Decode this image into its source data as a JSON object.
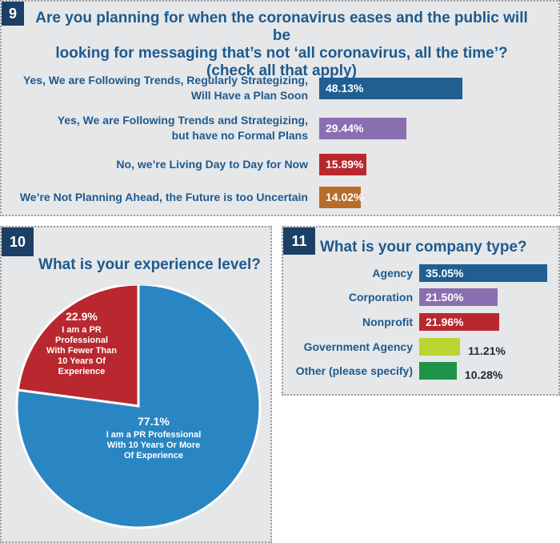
{
  "q9": {
    "number": "9",
    "title_lines": [
      "Are you planning for when the coronavirus eases and the public will be",
      "looking for messaging that’s not ‘all coronavirus, all the time’?",
      "(check all that apply)"
    ],
    "chart_data": {
      "type": "bar",
      "orientation": "horizontal",
      "unit": "%",
      "categories": [
        "Yes, We are Following Trends, Regularly Strategizing, Will Have a Plan Soon",
        "Yes, We are Following Trends and Strategizing, but have no Formal Plans",
        "No, we’re Living Day to Day for Now",
        "We’re Not Planning Ahead, the Future is too Uncertain"
      ],
      "category_lines": [
        [
          "Yes, We are Following Trends, Regularly Strategizing,",
          "Will Have a Plan Soon"
        ],
        [
          "Yes, We are Following Trends and Strategizing,",
          "but have no Formal Plans"
        ],
        [
          "No, we’re Living Day to Day for Now"
        ],
        [
          "We’re Not Planning Ahead, the Future is too Uncertain"
        ]
      ],
      "values": [
        48.13,
        29.44,
        15.89,
        14.02
      ],
      "value_labels": [
        "48.13%",
        "29.44%",
        "15.89%",
        "14.02%"
      ],
      "colors": [
        "#215e91",
        "#8a6fb0",
        "#b9282e",
        "#b86e2a"
      ]
    }
  },
  "q10": {
    "number": "10",
    "title": "What is your experience level?",
    "chart_data": {
      "type": "pie",
      "unit": "%",
      "values": [
        22.9,
        77.1
      ],
      "value_labels": [
        "22.9%",
        "77.1%"
      ],
      "slice_lines": [
        [
          "I am a PR",
          "Professional",
          "With Fewer Than",
          "10 Years Of",
          "Experience"
        ],
        [
          "I am a PR Professional",
          "With 10 Years Or More",
          "Of Experience"
        ]
      ],
      "colors": [
        "#b9282e",
        "#2a86c2"
      ]
    }
  },
  "q11": {
    "number": "11",
    "title": "What is your company type?",
    "chart_data": {
      "type": "bar",
      "orientation": "horizontal",
      "unit": "%",
      "categories": [
        "Agency",
        "Corporation",
        "Nonprofit",
        "Government Agency",
        "Other (please specify)"
      ],
      "values": [
        35.05,
        21.5,
        21.96,
        11.21,
        10.28
      ],
      "value_labels": [
        "35.05%",
        "21.50%",
        "21.96%",
        "11.21%",
        "10.28%"
      ],
      "colors": [
        "#215e91",
        "#8a6fb0",
        "#b9282e",
        "#bcd531",
        "#1f9448"
      ]
    }
  }
}
